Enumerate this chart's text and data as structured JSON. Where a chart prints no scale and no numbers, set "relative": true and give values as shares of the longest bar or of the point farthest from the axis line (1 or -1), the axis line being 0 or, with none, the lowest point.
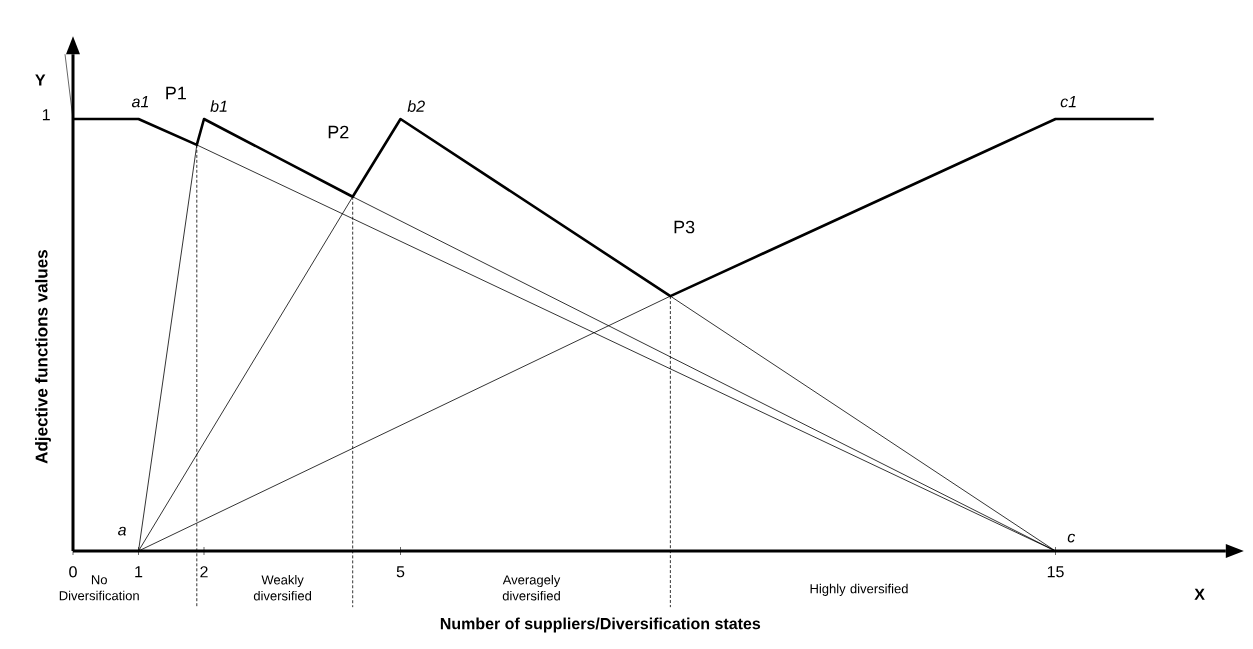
{
  "chart_data": {
    "type": "line",
    "relative": true,
    "xlabel": "Number of suppliers/Diversification states",
    "ylabel": "Adjective functions values",
    "xlim": [
      0,
      17.6
    ],
    "xticks": [
      0,
      1,
      2,
      5,
      15
    ],
    "grid": false,
    "marker": "none",
    "series": [
      {
        "color": "#000000",
        "line_style": "solid",
        "x": [
          0,
          1,
          1.89,
          2,
          4.27,
          5,
          9.12,
          15,
          16.5
        ],
        "values": [
          1,
          1,
          0.94,
          1,
          0.82,
          1,
          0.59,
          1,
          1
        ]
      },
      {
        "color": "#000000",
        "line_style": "solid",
        "x": [
          1,
          1.89,
          15
        ],
        "values": [
          0,
          0.94,
          0
        ]
      },
      {
        "color": "#000000",
        "line_style": "solid",
        "x": [
          1,
          4.27,
          15
        ],
        "values": [
          0,
          0.82,
          0
        ]
      },
      {
        "color": "#000000",
        "line_style": "solid",
        "x": [
          1,
          9.12,
          15
        ],
        "values": [
          0,
          0.59,
          0
        ]
      },
      {
        "color": "#000000",
        "line_style": "dashed",
        "x": [
          1.89,
          1.89
        ],
        "values": [
          0.94,
          -0.13
        ]
      },
      {
        "color": "#000000",
        "line_style": "dashed",
        "x": [
          4.27,
          4.27
        ],
        "values": [
          0.82,
          -0.13
        ]
      },
      {
        "color": "#000000",
        "line_style": "dashed",
        "x": [
          9.12,
          9.12
        ],
        "values": [
          0.59,
          -0.13
        ]
      }
    ],
    "annotations": [
      "Y",
      "X",
      "1",
      "a1",
      "P1",
      "b1",
      "P2",
      "b2",
      "P3",
      "c1",
      "a",
      "c",
      "No Diversification",
      "Weakly diversified",
      "Averagely diversified",
      "Highly diversified"
    ]
  }
}
